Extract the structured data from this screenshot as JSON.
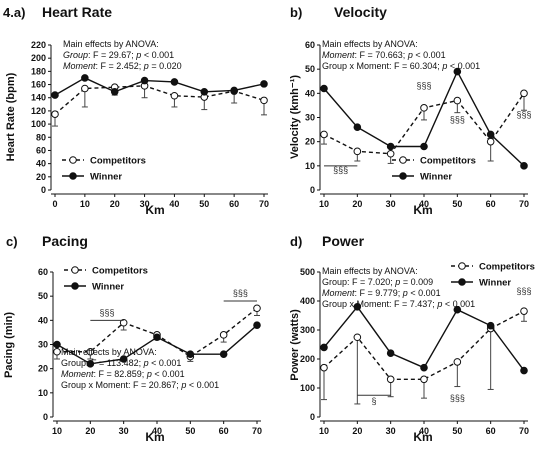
{
  "chart_data": [
    {
      "type": "line",
      "panel_label": "4.a)",
      "title": "Heart Rate",
      "xlabel": "Km",
      "ylabel": "Heart Rate (bpm)",
      "x": [
        0,
        10,
        20,
        30,
        40,
        50,
        60,
        70
      ],
      "xticks": [
        "0",
        "10",
        "20",
        "30",
        "40",
        "50",
        "60",
        "70"
      ],
      "ylim": [
        0,
        220
      ],
      "yticks": [
        "0",
        "20",
        "40",
        "60",
        "80",
        "100",
        "120",
        "140",
        "160",
        "180",
        "200",
        "220"
      ],
      "series": [
        {
          "name": "Competitors",
          "style": "dashed-open",
          "values": [
            115,
            154,
            156,
            158,
            143,
            141,
            150,
            136
          ],
          "err": [
            18,
            28,
            12,
            18,
            17,
            19,
            18,
            22
          ]
        },
        {
          "name": "Winner",
          "style": "solid-filled",
          "values": [
            144,
            170,
            149,
            166,
            164,
            149,
            151,
            161
          ]
        }
      ],
      "annotations": [
        {
          "text": "Main effects by  ANOVA:"
        },
        {
          "label": "Group",
          "text": ": F = 29.67; ",
          "p": "p",
          "tail": " < 0.001"
        },
        {
          "label": "Moment",
          "text": ": F = 2.452; ",
          "p": "p",
          "tail": " = 0.020"
        }
      ],
      "sig_marks": [],
      "legend_position": "bottom-left"
    },
    {
      "type": "line",
      "panel_label": "b)",
      "title": "Velocity",
      "xlabel": "Km",
      "ylabel": "Velocity (kmh⁻¹)",
      "x": [
        10,
        20,
        30,
        40,
        50,
        60,
        70
      ],
      "xticks": [
        "10",
        "20",
        "30",
        "40",
        "50",
        "60",
        "70"
      ],
      "ylim": [
        0,
        60
      ],
      "yticks": [
        "0",
        "10",
        "20",
        "30",
        "40",
        "50",
        "60"
      ],
      "series": [
        {
          "name": "Competitors",
          "style": "dashed-open",
          "values": [
            23,
            16,
            15,
            34,
            37,
            20,
            40
          ],
          "err": [
            4,
            4,
            4,
            5,
            5,
            8,
            7
          ]
        },
        {
          "name": "Winner",
          "style": "solid-filled",
          "values": [
            42,
            26,
            18,
            18,
            49,
            23,
            10
          ]
        }
      ],
      "annotations": [
        {
          "text": "Main effects by  ANOVA:"
        },
        {
          "label": "Moment",
          "text": ": F = 70.663; ",
          "p": "p",
          "tail": " < 0.001"
        },
        {
          "label": "",
          "text": "Group x Moment: F = 60.304; ",
          "p": "p",
          "tail": " < 0.001"
        }
      ],
      "sig_marks": [
        {
          "text": "§§§",
          "x": 15,
          "y": 7,
          "bar": [
            10,
            20,
            10
          ]
        },
        {
          "text": "§§§",
          "x": 40,
          "y": 42
        },
        {
          "text": "§§§",
          "x": 50,
          "y": 28
        },
        {
          "text": "§§§",
          "x": 70,
          "y": 30
        }
      ],
      "legend_position": "bottom-right"
    },
    {
      "type": "line",
      "panel_label": "c)",
      "title": "Pacing",
      "xlabel": "Km",
      "ylabel": "Pacing (min)",
      "x": [
        10,
        20,
        30,
        40,
        50,
        60,
        70
      ],
      "xticks": [
        "10",
        "20",
        "30",
        "40",
        "50",
        "60",
        "70"
      ],
      "ylim": [
        0,
        60
      ],
      "yticks": [
        "0",
        "10",
        "20",
        "30",
        "40",
        "50",
        "60"
      ],
      "series": [
        {
          "name": "Competitors",
          "style": "dashed-open",
          "values": [
            27,
            27,
            39,
            34,
            25,
            34,
            45
          ],
          "err": [
            3,
            3,
            3,
            2,
            2,
            3,
            3
          ]
        },
        {
          "name": "Winner",
          "style": "solid-filled",
          "values": [
            30,
            22,
            24,
            33,
            26,
            26,
            38
          ]
        }
      ],
      "annotations": [
        {
          "text": "Main effects by  ANOVA:"
        },
        {
          "label": "",
          "text": "Group: F = 113.482; ",
          "p": "p",
          "tail": " < 0.001"
        },
        {
          "label": "Moment",
          "text": ": F = 82.859; ",
          "p": "p",
          "tail": " < 0.001"
        },
        {
          "label": "",
          "text": "Group x Moment: F = 20.867; ",
          "p": "p",
          "tail": " < 0.001"
        }
      ],
      "sig_marks": [
        {
          "text": "§§§",
          "x": 25,
          "y": 42,
          "bar": [
            20,
            30,
            40
          ]
        },
        {
          "text": "§§§",
          "x": 65,
          "y": 50,
          "bar": [
            60,
            70,
            48
          ]
        }
      ],
      "legend_position": "top-left"
    },
    {
      "type": "line",
      "panel_label": "d)",
      "title": "Power",
      "xlabel": "Km",
      "ylabel": "Power (watts)",
      "x": [
        10,
        20,
        30,
        40,
        50,
        60,
        70
      ],
      "xticks": [
        "10",
        "20",
        "30",
        "40",
        "50",
        "60",
        "70"
      ],
      "ylim": [
        0,
        500
      ],
      "yticks": [
        "0",
        "100",
        "200",
        "300",
        "400",
        "500"
      ],
      "series": [
        {
          "name": "Competitors",
          "style": "dashed-open",
          "values": [
            170,
            275,
            130,
            130,
            190,
            305,
            365
          ],
          "err": [
            110,
            230,
            60,
            65,
            85,
            210,
            35
          ]
        },
        {
          "name": "Winner",
          "style": "solid-filled",
          "values": [
            240,
            380,
            220,
            170,
            370,
            315,
            160
          ]
        }
      ],
      "annotations": [
        {
          "text": "Main effects by  ANOVA:"
        },
        {
          "label": "",
          "text": "Group: F = 7.020; ",
          "p": "p",
          "tail": " = 0.009"
        },
        {
          "label": "Moment",
          "text": ": F = 9.779; ",
          "p": "p",
          "tail": " < 0.001"
        },
        {
          "label": "",
          "text": "Group x Moment: F = 7.437; ",
          "p": "p",
          "tail": " < 0.001"
        }
      ],
      "sig_marks": [
        {
          "text": "§",
          "x": 25,
          "y": 45,
          "bar": [
            20,
            30,
            75
          ]
        },
        {
          "text": "§§§",
          "x": 50,
          "y": 55
        },
        {
          "text": "§§§",
          "x": 70,
          "y": 425
        }
      ],
      "legend_position": "top-right"
    }
  ]
}
